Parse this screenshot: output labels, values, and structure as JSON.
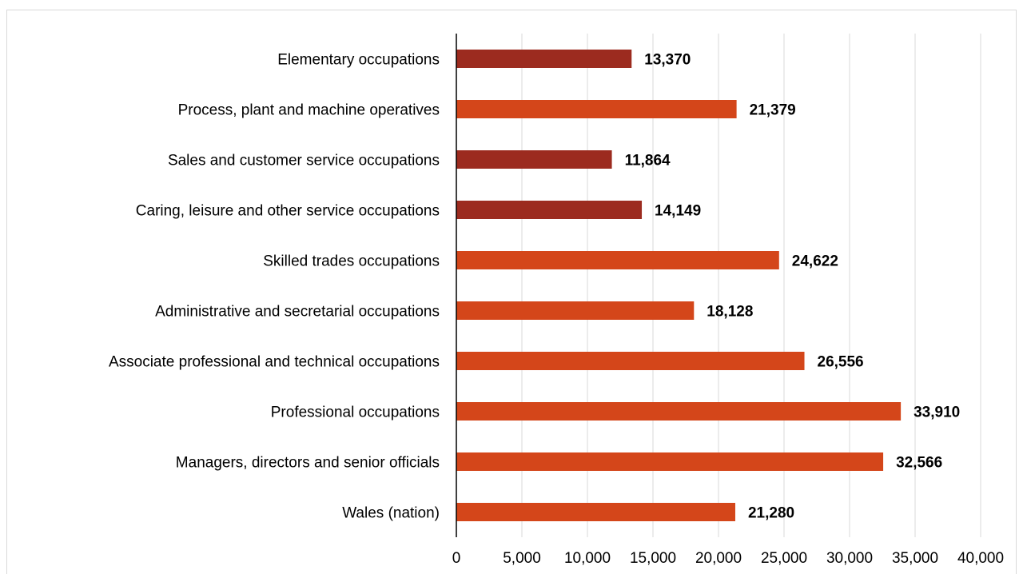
{
  "chart_data": {
    "type": "bar",
    "orientation": "horizontal",
    "title": "",
    "xlabel": "",
    "ylabel": "",
    "xlim": [
      0,
      40000
    ],
    "x_ticks": [
      0,
      5000,
      10000,
      15000,
      20000,
      25000,
      30000,
      35000,
      40000
    ],
    "x_tick_labels": [
      "0",
      "5,000",
      "10,000",
      "15,000",
      "20,000",
      "25,000",
      "30,000",
      "35,000",
      "40,000"
    ],
    "grid": "vertical",
    "legend": "none",
    "categories": [
      "Elementary occupations",
      "Process, plant and machine operatives",
      "Sales and customer service occupations",
      "Caring, leisure and other service occupations",
      "Skilled trades occupations",
      "Administrative and secretarial occupations",
      "Associate professional and technical occupations",
      "Professional occupations",
      "Managers, directors and senior officials",
      "Wales (nation)"
    ],
    "values": [
      13370,
      21379,
      11864,
      14149,
      24622,
      18128,
      26556,
      33910,
      32566,
      21280
    ],
    "value_labels": [
      "13,370",
      "21,379",
      "11,864",
      "14,149",
      "24,622",
      "18,128",
      "26,556",
      "33,910",
      "32,566",
      "21,280"
    ],
    "bar_colors": [
      "#9c2b1f",
      "#d4461a",
      "#9c2b1f",
      "#9c2b1f",
      "#d4461a",
      "#d4461a",
      "#d4461a",
      "#d4461a",
      "#d4461a",
      "#d4461a"
    ],
    "colors": {
      "dark": "#9c2b1f",
      "orange": "#d4461a",
      "gridline": "#d9d9d9",
      "axis": "#000000"
    }
  }
}
